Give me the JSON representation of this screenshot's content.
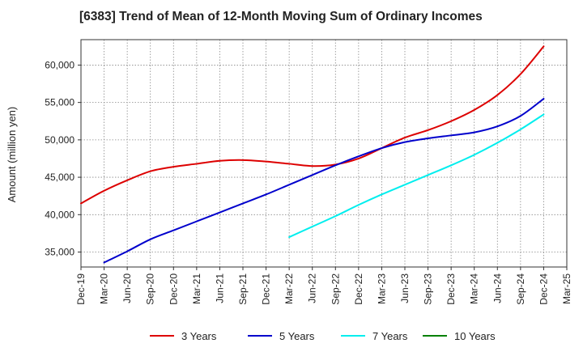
{
  "chart_data": {
    "type": "line",
    "title": "[6383]  Trend of Mean of 12-Month Moving Sum of Ordinary Incomes",
    "ylabel": "Amount (million yen)",
    "xlabel": "",
    "x_ticks": [
      "Dec-19",
      "Mar-20",
      "Jun-20",
      "Sep-20",
      "Dec-20",
      "Mar-21",
      "Jun-21",
      "Sep-21",
      "Dec-21",
      "Mar-22",
      "Jun-22",
      "Sep-22",
      "Dec-22",
      "Mar-23",
      "Jun-23",
      "Sep-23",
      "Dec-23",
      "Mar-24",
      "Jun-24",
      "Sep-24",
      "Dec-24",
      "Mar-25"
    ],
    "y_ticks": [
      "35,000",
      "40,000",
      "45,000",
      "50,000",
      "55,000",
      "60,000"
    ],
    "y_tick_values": [
      35000,
      40000,
      45000,
      50000,
      55000,
      60000
    ],
    "ylim": [
      33000,
      63400
    ],
    "xlim": [
      "Dec-19",
      "Mar-25"
    ],
    "grid": true,
    "legend_position": "bottom",
    "series": [
      {
        "name": "3 Years",
        "color": "#dd0000",
        "x": [
          "Dec-19",
          "Mar-20",
          "Jun-20",
          "Sep-20",
          "Dec-20",
          "Mar-21",
          "Jun-21",
          "Sep-21",
          "Dec-21",
          "Mar-22",
          "Jun-22",
          "Sep-22",
          "Dec-22",
          "Mar-23",
          "Jun-23",
          "Sep-23",
          "Dec-23",
          "Mar-24",
          "Jun-24",
          "Sep-24",
          "Dec-24"
        ],
        "values": [
          41500,
          43200,
          44600,
          45800,
          46400,
          46800,
          47200,
          47300,
          47100,
          46800,
          46500,
          46700,
          47500,
          48900,
          50300,
          51300,
          52500,
          54000,
          56000,
          58800,
          62500
        ]
      },
      {
        "name": "5 Years",
        "color": "#0000cc",
        "x": [
          "Mar-20",
          "Jun-20",
          "Sep-20",
          "Dec-20",
          "Mar-21",
          "Jun-21",
          "Sep-21",
          "Dec-21",
          "Mar-22",
          "Jun-22",
          "Sep-22",
          "Dec-22",
          "Mar-23",
          "Jun-23",
          "Sep-23",
          "Dec-23",
          "Mar-24",
          "Jun-24",
          "Sep-24",
          "Dec-24"
        ],
        "values": [
          33600,
          35100,
          36700,
          37900,
          39100,
          40300,
          41500,
          42700,
          44000,
          45300,
          46600,
          47800,
          48900,
          49700,
          50200,
          50600,
          51000,
          51800,
          53200,
          55500
        ]
      },
      {
        "name": "7 Years",
        "color": "#00eeee",
        "x": [
          "Mar-22",
          "Jun-22",
          "Sep-22",
          "Dec-22",
          "Mar-23",
          "Jun-23",
          "Sep-23",
          "Dec-23",
          "Mar-24",
          "Jun-24",
          "Sep-24",
          "Dec-24"
        ],
        "values": [
          37000,
          38400,
          39800,
          41300,
          42700,
          44000,
          45300,
          46600,
          48000,
          49600,
          51400,
          53400
        ]
      },
      {
        "name": "10 Years",
        "color": "#008000",
        "x": [],
        "values": []
      }
    ]
  }
}
